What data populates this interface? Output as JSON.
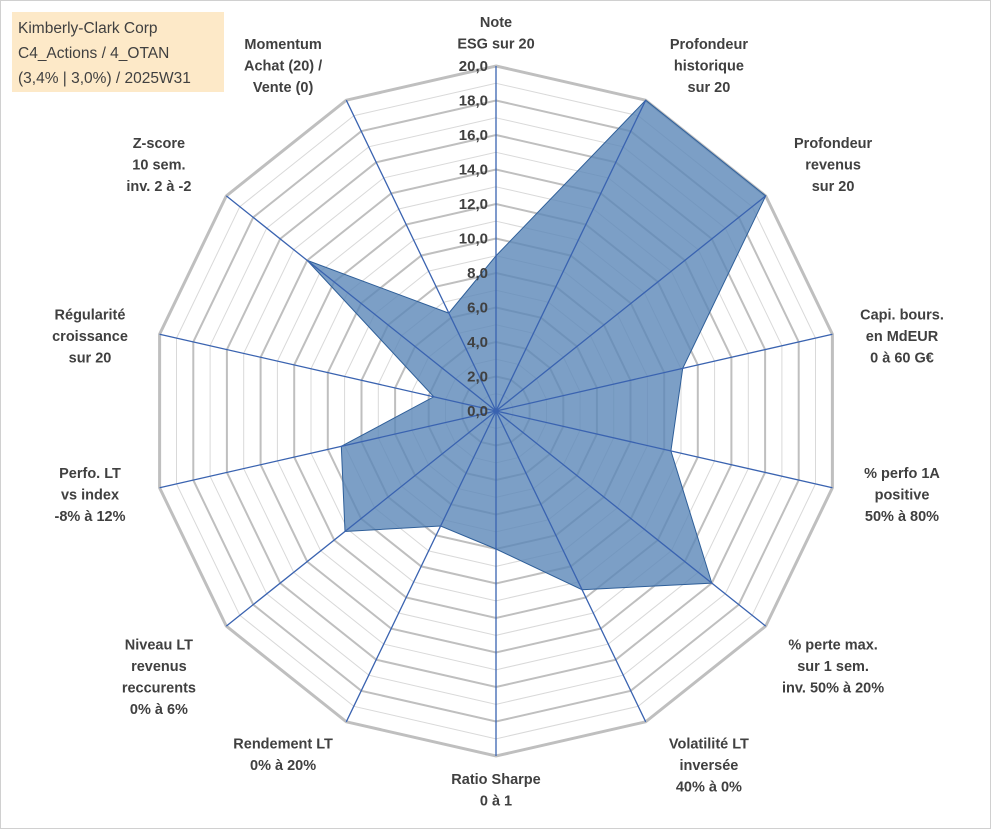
{
  "header": {
    "line1": "Kimberly-Clark Corp",
    "line2": "C4_Actions / 4_OTAN",
    "line3": "(3,4% | 3,0%) / 2025W31"
  },
  "colors": {
    "fill": "#5b87b8",
    "fill_opacity": 0.8,
    "stroke": "#2f5f99",
    "spokes": "#3a63b0",
    "grid_major": "#bfbfbf",
    "grid_minor": "#d9d9d9",
    "label_text": "#404040",
    "title_bg": "#fde9c8"
  },
  "chart_data": {
    "type": "radar",
    "rmin": 0,
    "rmax": 20,
    "major_step": 2,
    "minor_step": 1,
    "grid": true,
    "tick_labels": [
      "0,0",
      "2,0",
      "4,0",
      "6,0",
      "8,0",
      "10,0",
      "12,0",
      "14,0",
      "16,0",
      "18,0",
      "20,0"
    ],
    "categories": [
      [
        "Note",
        "ESG sur 20"
      ],
      [
        "Profondeur",
        "historique",
        "sur 20"
      ],
      [
        "Profondeur",
        "revenus",
        "sur 20"
      ],
      [
        "Capi. bours.",
        "en MdEUR",
        "0 à 60 G€"
      ],
      [
        "% perfo 1A",
        "positive",
        "50% à 80%"
      ],
      [
        "% perte max.",
        "sur 1 sem.",
        "inv. 50% à 20%"
      ],
      [
        "Volatilité LT",
        "inversée",
        "40% à 0%"
      ],
      [
        "Ratio Sharpe",
        "0 à 1"
      ],
      [
        "Rendement LT",
        "0% à 20%"
      ],
      [
        "Niveau LT",
        "revenus",
        "reccurents",
        "0% à 6%"
      ],
      [
        "Perfo. LT",
        "vs index",
        "-8% à 12%"
      ],
      [
        "Régularité",
        "croissance",
        "sur 20"
      ],
      [
        "Z-score",
        "10 sem.",
        "inv. 2 à -2"
      ],
      [
        "Momentum",
        "Achat (20) /",
        "Vente (0)"
      ]
    ],
    "values": [
      9,
      20,
      20,
      11.1,
      10.4,
      16.0,
      11.5,
      8.0,
      7.4,
      11.2,
      9.2,
      3.7,
      14.0,
      6.3
    ]
  }
}
